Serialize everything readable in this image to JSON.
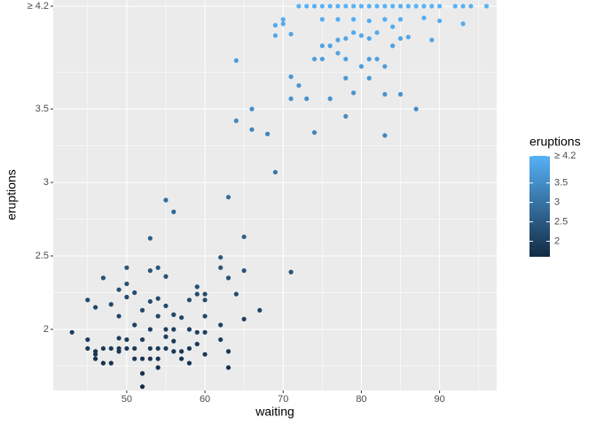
{
  "chart_data": {
    "type": "scatter",
    "x_label": "waiting",
    "y_label": "eruptions",
    "legend_title": "eruptions",
    "xlim": [
      40.6,
      97.3
    ],
    "ylim": [
      1.584,
      4.242
    ],
    "xticks": [
      50,
      60,
      70,
      80,
      90
    ],
    "yticks": [
      2,
      2.5,
      3,
      3.5,
      {
        "value": 4.2,
        "label": "≥ 4.2"
      }
    ],
    "x_minor_grid": [
      45,
      55,
      65,
      75,
      85,
      95
    ],
    "y_minor_grid": [
      1.75,
      2.25,
      2.75,
      3.25,
      3.75
    ],
    "grid": true,
    "color_low": "#132B43",
    "color_high": "#56B1F7",
    "colorlim": [
      1.6,
      4.2
    ],
    "legend_ticks": [
      2,
      2.5,
      3,
      3.5,
      {
        "value": 4.2,
        "label": "≥ 4.2"
      }
    ],
    "legend_position": "right",
    "series": [
      {
        "name": "eruptions",
        "x": [
          72,
          73,
          74,
          75,
          76,
          77,
          78,
          79,
          80,
          81,
          82,
          83,
          84,
          85,
          86,
          87,
          88,
          89,
          90,
          92,
          93,
          94,
          96,
          70,
          70,
          69,
          71,
          69,
          75,
          77,
          79,
          81,
          83,
          85,
          88,
          90,
          93,
          77,
          78,
          76,
          79,
          80,
          81,
          82,
          84,
          84,
          85,
          86,
          89,
          75,
          74,
          75,
          78,
          77,
          80,
          81,
          82,
          83,
          81,
          79,
          78,
          71,
          72,
          71,
          73,
          76,
          83,
          85,
          87,
          78,
          83,
          74,
          64,
          66,
          64,
          66,
          68,
          69,
          63,
          55,
          56,
          53,
          65,
          62,
          71,
          43,
          45,
          45,
          45,
          46,
          46,
          46,
          46,
          47,
          47,
          47,
          48,
          48,
          48,
          49,
          49,
          49,
          49,
          49,
          50,
          50,
          50,
          50,
          50,
          51,
          51,
          51,
          51,
          52,
          52,
          52,
          52,
          52,
          53,
          53,
          53,
          53,
          53,
          54,
          54,
          54,
          54,
          54,
          54,
          55,
          55,
          55,
          55,
          55,
          56,
          56,
          56,
          56,
          57,
          57,
          57,
          58,
          58,
          58,
          58,
          59,
          59,
          59,
          59,
          60,
          60,
          60,
          60,
          60,
          62,
          62,
          62,
          63,
          63,
          63,
          64,
          65,
          65,
          67
        ],
        "values": [
          4.2,
          4.2,
          4.2,
          4.2,
          4.2,
          4.2,
          4.2,
          4.2,
          4.2,
          4.2,
          4.2,
          4.2,
          4.2,
          4.2,
          4.2,
          4.2,
          4.2,
          4.2,
          4.2,
          4.2,
          4.2,
          4.2,
          4.2,
          4.11,
          4.08,
          4.07,
          4.01,
          4.0,
          4.11,
          4.11,
          4.11,
          4.1,
          4.11,
          4.11,
          4.12,
          4.1,
          4.08,
          3.97,
          3.98,
          3.93,
          4.02,
          4.0,
          3.98,
          4.02,
          4.06,
          3.93,
          3.98,
          3.99,
          3.97,
          3.93,
          3.84,
          3.84,
          3.84,
          3.88,
          3.79,
          3.84,
          3.84,
          3.79,
          3.71,
          3.61,
          3.71,
          3.72,
          3.66,
          3.57,
          3.57,
          3.57,
          3.6,
          3.6,
          3.5,
          3.45,
          3.32,
          3.34,
          3.83,
          3.5,
          3.42,
          3.36,
          3.33,
          3.07,
          2.9,
          2.88,
          2.8,
          2.62,
          2.63,
          2.49,
          2.39,
          1.98,
          2.2,
          1.93,
          1.87,
          2.15,
          1.85,
          1.83,
          1.8,
          2.35,
          1.87,
          1.77,
          2.17,
          1.87,
          1.77,
          2.27,
          2.09,
          1.94,
          1.87,
          1.85,
          2.42,
          2.31,
          2.22,
          1.87,
          1.93,
          2.25,
          2.03,
          1.87,
          1.8,
          2.13,
          1.93,
          1.8,
          1.61,
          1.7,
          2.4,
          2.19,
          2.0,
          1.87,
          1.8,
          2.42,
          2.21,
          2.09,
          1.87,
          1.8,
          1.74,
          2.36,
          2.16,
          2.0,
          1.95,
          1.87,
          2.1,
          2.0,
          1.92,
          1.85,
          2.08,
          1.85,
          1.8,
          2.2,
          2.0,
          1.87,
          1.77,
          2.29,
          2.24,
          1.98,
          1.9,
          2.24,
          2.2,
          2.09,
          1.98,
          1.83,
          2.42,
          2.03,
          1.93,
          2.35,
          1.85,
          1.74,
          2.24,
          2.4,
          2.07,
          2.13
        ]
      }
    ]
  }
}
